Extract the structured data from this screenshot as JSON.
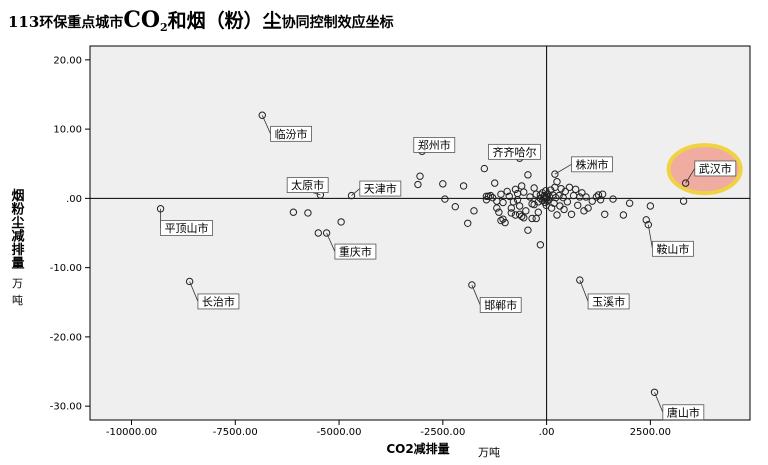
{
  "title": {
    "prefix_num": "113",
    "prefix_cn": "环保重点城市",
    "co": "CO",
    "sub": "2",
    "he_yan": "和烟（粉）尘",
    "suffix": "协同控制效应坐标"
  },
  "chart_data": {
    "type": "scatter",
    "xlabel": "CO2减排量",
    "xunit": "万吨",
    "ylabel": "烟粉尘减排量",
    "yunit": "万吨",
    "xlim": [
      -11000,
      4900
    ],
    "ylim": [
      -32,
      22
    ],
    "xticks": [
      -10000,
      -7500,
      -5000,
      -2500,
      0,
      2500
    ],
    "xtick_labels": [
      "-10000.00",
      "-7500.00",
      "-5000.00",
      "-2500.00",
      ".00",
      "2500.00"
    ],
    "yticks": [
      20,
      10,
      0,
      -10,
      -20,
      -30
    ],
    "ytick_labels": [
      "20.00",
      "10.00",
      ".00",
      "-10.00",
      "-20.00",
      "-30.00"
    ],
    "grid": false,
    "background": "#efefef",
    "highlight_color": "#f2a59a",
    "highlight_ring": "#f0d030",
    "labeled_points": [
      {
        "name": "临汾市",
        "x": -6850,
        "y": 12,
        "lx": -6650,
        "ly": 10.4
      },
      {
        "name": "郑州市",
        "x": -3000,
        "y": 6.8,
        "lx": -3200,
        "ly": 8.8
      },
      {
        "name": "齐齐哈尔",
        "x": -650,
        "y": 5.8,
        "lx": -1400,
        "ly": 7.8
      },
      {
        "name": "株洲市",
        "x": 200,
        "y": 3.5,
        "lx": 600,
        "ly": 6
      },
      {
        "name": "武汉市",
        "x": 3350,
        "y": 2.2,
        "lx": 3570,
        "ly": 5.4
      },
      {
        "name": "太原市",
        "x": -5450,
        "y": 0.5,
        "lx": -6250,
        "ly": 3
      },
      {
        "name": "天津市",
        "x": -4700,
        "y": 0.4,
        "lx": -4500,
        "ly": 2.5
      },
      {
        "name": "平顶山市",
        "x": -9300,
        "y": -1.5,
        "lx": -9300,
        "ly": -3.2
      },
      {
        "name": "重庆市",
        "x": -5300,
        "y": -5,
        "lx": -5100,
        "ly": -6.6
      },
      {
        "name": "鞍山市",
        "x": 2450,
        "y": -3.8,
        "lx": 2550,
        "ly": -6.2
      },
      {
        "name": "长治市",
        "x": -8600,
        "y": -12,
        "lx": -8400,
        "ly": -13.8
      },
      {
        "name": "邯郸市",
        "x": -1800,
        "y": -12.5,
        "lx": -1600,
        "ly": -14.3
      },
      {
        "name": "玉溪市",
        "x": 800,
        "y": -11.8,
        "lx": 1000,
        "ly": -13.8
      },
      {
        "name": "唐山市",
        "x": 2600,
        "y": -28,
        "lx": 2800,
        "ly": -29.8
      }
    ],
    "points": [
      [
        -6100,
        -2
      ],
      [
        -5750,
        -2.1
      ],
      [
        -5500,
        -5
      ],
      [
        -4950,
        -3.4
      ],
      [
        -3100,
        2
      ],
      [
        -3050,
        3.2
      ],
      [
        -2500,
        2.1
      ],
      [
        -2450,
        -0.1
      ],
      [
        -2200,
        -1.2
      ],
      [
        -2000,
        1.8
      ],
      [
        -1900,
        -3.6
      ],
      [
        -1750,
        -1.8
      ],
      [
        -1500,
        4.3
      ],
      [
        -1450,
        0.3
      ],
      [
        -1400,
        0.3
      ],
      [
        -1350,
        0.4
      ],
      [
        -1300,
        0.1
      ],
      [
        -1250,
        2.2
      ],
      [
        -1200,
        -0.4
      ],
      [
        -1200,
        -1.4
      ],
      [
        -1150,
        -2
      ],
      [
        -1100,
        0.6
      ],
      [
        -1100,
        -3.2
      ],
      [
        -1050,
        -3
      ],
      [
        -1000,
        -3.5
      ],
      [
        -950,
        1
      ],
      [
        -900,
        0.3
      ],
      [
        -850,
        -1.4
      ],
      [
        -800,
        -0.5
      ],
      [
        -750,
        -2.4
      ],
      [
        -750,
        1.3
      ],
      [
        -700,
        -0.2
      ],
      [
        -700,
        0.7
      ],
      [
        -650,
        -1.1
      ],
      [
        -600,
        -2.6
      ],
      [
        -550,
        0.9
      ],
      [
        -500,
        -1.8
      ],
      [
        -450,
        -4.6
      ],
      [
        -450,
        3.4
      ],
      [
        -400,
        0.2
      ],
      [
        -350,
        -0.8
      ],
      [
        -300,
        1.5
      ],
      [
        -250,
        -2.9
      ],
      [
        -250,
        0.6
      ],
      [
        -200,
        -0.5
      ],
      [
        -200,
        -2
      ],
      [
        -150,
        0
      ],
      [
        -150,
        0.5
      ],
      [
        -100,
        -0.3
      ],
      [
        -100,
        0.8
      ],
      [
        -80,
        0.2
      ],
      [
        -60,
        -0.1
      ],
      [
        -50,
        0.4
      ],
      [
        -40,
        -0.6
      ],
      [
        -30,
        0.1
      ],
      [
        -20,
        1.1
      ],
      [
        -10,
        -1
      ],
      [
        0,
        0
      ],
      [
        0,
        0.3
      ],
      [
        10,
        -0.4
      ],
      [
        30,
        0.6
      ],
      [
        50,
        -0.2
      ],
      [
        70,
        0.2
      ],
      [
        100,
        1.2
      ],
      [
        120,
        -1.4
      ],
      [
        150,
        0.5
      ],
      [
        180,
        -0.7
      ],
      [
        200,
        1.6
      ],
      [
        220,
        0.1
      ],
      [
        250,
        -2.4
      ],
      [
        300,
        0.4
      ],
      [
        320,
        -1.1
      ],
      [
        350,
        1.4
      ],
      [
        400,
        0.1
      ],
      [
        420,
        -1.6
      ],
      [
        450,
        1
      ],
      [
        500,
        -0.5
      ],
      [
        550,
        1.6
      ],
      [
        600,
        -2.3
      ],
      [
        650,
        0.4
      ],
      [
        700,
        1.3
      ],
      [
        750,
        -1
      ],
      [
        800,
        0.2
      ],
      [
        850,
        0.8
      ],
      [
        900,
        -1.8
      ],
      [
        950,
        0.2
      ],
      [
        1000,
        -1.4
      ],
      [
        1100,
        -0.4
      ],
      [
        1200,
        0.2
      ],
      [
        1250,
        0.5
      ],
      [
        1300,
        -0.2
      ],
      [
        1350,
        0.6
      ],
      [
        1400,
        -2.3
      ],
      [
        1600,
        -0.1
      ],
      [
        1850,
        -2.4
      ],
      [
        2000,
        -0.7
      ],
      [
        2400,
        -3.1
      ],
      [
        2500,
        -1.1
      ],
      [
        3300,
        -0.4
      ],
      [
        -650,
        -2.3
      ],
      [
        -550,
        -2.8
      ],
      [
        -350,
        -2.9
      ],
      [
        -850,
        -2.1
      ],
      [
        -150,
        -6.7
      ],
      [
        -1050,
        -0.6
      ],
      [
        -1450,
        -0.2
      ],
      [
        -600,
        1.8
      ],
      [
        -300,
        -0.9
      ],
      [
        250,
        2.4
      ]
    ]
  }
}
